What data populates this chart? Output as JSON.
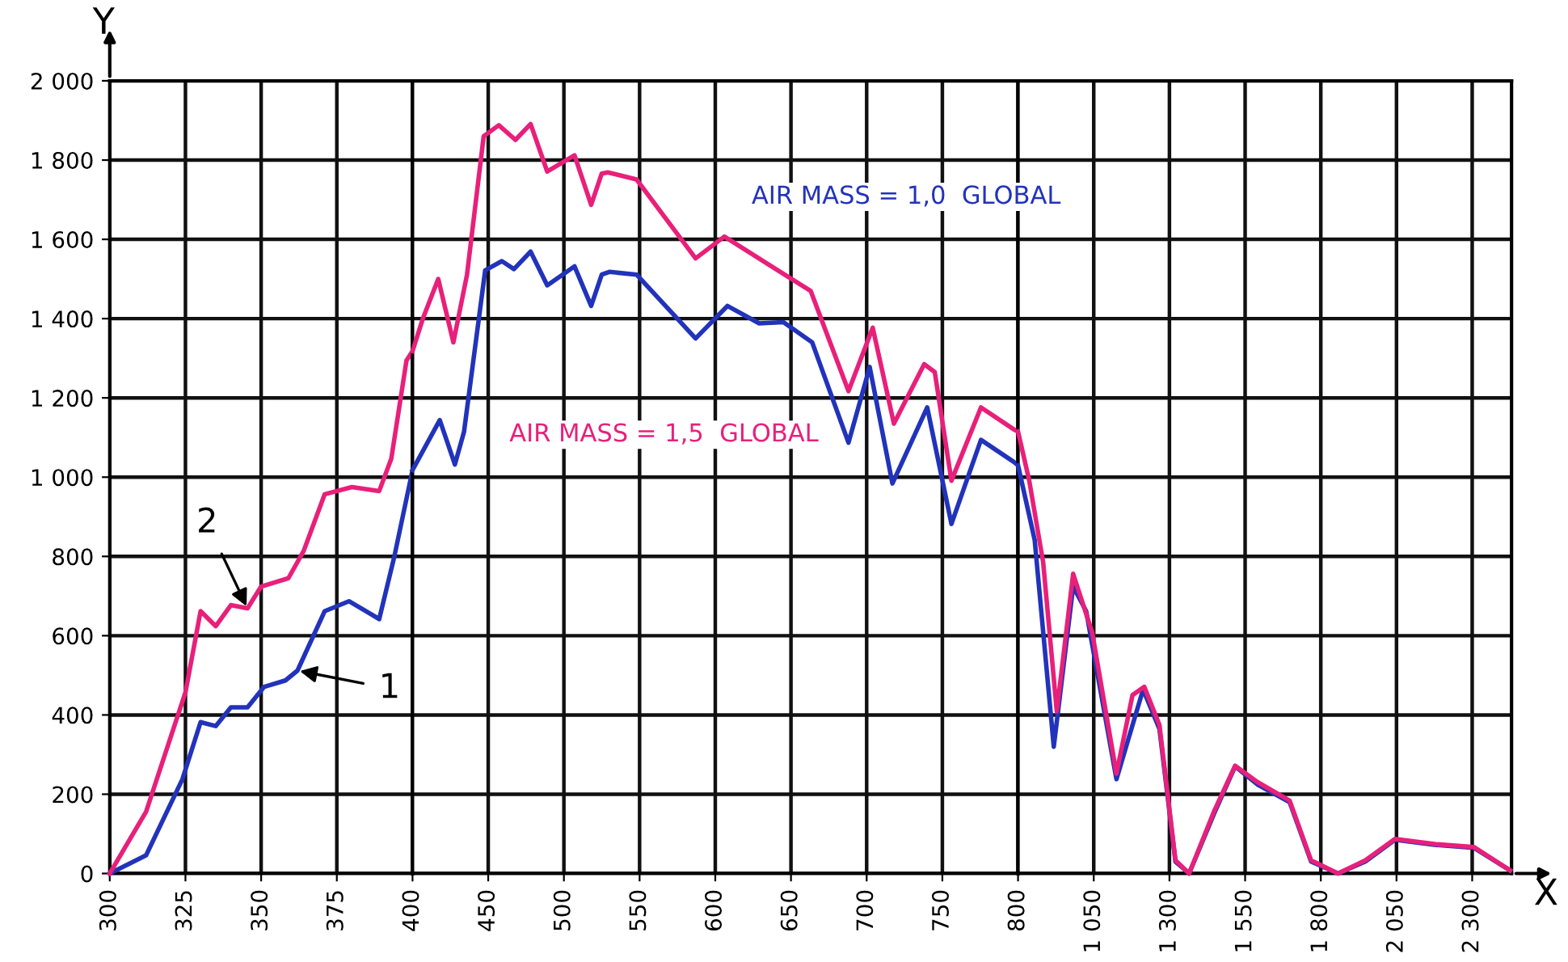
{
  "chart_data": [
    {
      "type": "line",
      "ylabel": "Y",
      "xlim": [
        300,
        400
      ],
      "ylim": [
        0,
        2000
      ],
      "xticks": [
        300,
        325,
        350,
        375,
        400
      ],
      "yticks": [
        0,
        200,
        400,
        600,
        800,
        {
          "value": 1000,
          "label": "1 000"
        },
        {
          "value": 1200,
          "label": "1 200"
        },
        {
          "value": 1400,
          "label": "1 400"
        },
        {
          "value": 1600,
          "label": "1 600"
        },
        {
          "value": 1800,
          "label": "1 800"
        },
        {
          "value": 2000,
          "label": "2 000"
        }
      ],
      "grid": true,
      "legend": false,
      "marker": "none",
      "line_style": "solid",
      "series": [
        {
          "color": "#2233bb",
          "x": [
            300,
            312,
            324,
            330,
            335,
            340,
            345.5,
            351,
            358,
            362,
            371,
            379,
            389,
            394,
            400
          ],
          "values": [
            0,
            46,
            238,
            382,
            372,
            419,
            419,
            471,
            487,
            512,
            662,
            687,
            642,
            800,
            1018
          ]
        },
        {
          "color": "#e8207a",
          "x": [
            300,
            312,
            325,
            330,
            335,
            340,
            345.5,
            350,
            359,
            364,
            371,
            380,
            389,
            393,
            398,
            400
          ],
          "values": [
            0,
            156,
            457,
            662,
            624,
            677,
            669,
            724,
            745,
            813,
            957,
            975,
            965,
            1047,
            1294,
            1318
          ]
        }
      ],
      "annotations": [
        {
          "text": "1",
          "x": 362,
          "y": 512
        },
        {
          "text": "2",
          "x": 345.5,
          "y": 669
        }
      ]
    },
    {
      "type": "line",
      "xlim": [
        400,
        800
      ],
      "ylim": [
        0,
        2000
      ],
      "tick_labels": "x",
      "xticks": [
        450,
        500,
        550,
        600,
        650,
        700,
        750,
        800
      ],
      "yticks": [
        0,
        200,
        400,
        600,
        800,
        1000,
        1200,
        1400,
        1600,
        1800,
        2000
      ],
      "grid": true,
      "legend": false,
      "marker": "none",
      "line_style": "solid",
      "series": [
        {
          "name": "AIR MASS = 1,0  GLOBAL",
          "color": "#2233bb",
          "x": [
            400,
            418,
            428,
            434,
            448,
            459,
            467,
            478,
            489,
            507,
            518,
            525,
            530,
            548,
            587,
            608,
            629,
            645,
            664,
            688,
            702,
            717,
            740,
            756,
            775.5,
            797,
            800
          ],
          "values": [
            1018,
            1144,
            1032,
            1114,
            1522,
            1545,
            1525,
            1569,
            1484,
            1532,
            1432,
            1511,
            1518,
            1511,
            1350,
            1432,
            1388,
            1391,
            1340,
            1087,
            1278,
            984,
            1176,
            882,
            1094,
            1039,
            1030
          ]
        },
        {
          "name": "AIR MASS = 1,5  GLOBAL",
          "color": "#e8207a",
          "x": [
            400,
            407,
            417,
            427,
            436,
            447,
            457,
            468,
            478,
            489,
            507,
            518,
            525,
            529,
            548,
            587,
            606,
            640,
            663,
            688,
            704,
            718,
            738,
            745,
            756,
            775.5,
            797,
            800
          ],
          "values": [
            1318,
            1402,
            1500,
            1340,
            1511,
            1860,
            1888,
            1851,
            1891,
            1771,
            1812,
            1687,
            1766,
            1769,
            1751,
            1552,
            1607,
            1525,
            1470,
            1217,
            1377,
            1135,
            1285,
            1265,
            991,
            1176,
            1121,
            1115
          ]
        }
      ]
    },
    {
      "type": "line",
      "xlabel": "X",
      "xlim": [
        800,
        2430
      ],
      "ylim": [
        0,
        2000
      ],
      "tick_labels": "x",
      "xticks": [
        {
          "value": 1050,
          "label": "1 050"
        },
        {
          "value": 1300,
          "label": "1 300"
        },
        {
          "value": 1550,
          "label": "1 550"
        },
        {
          "value": 1800,
          "label": "1 800"
        },
        {
          "value": 2050,
          "label": "2 050"
        },
        {
          "value": 2300,
          "label": "2 300"
        }
      ],
      "yticks": [
        0,
        200,
        400,
        600,
        800,
        1000,
        1200,
        1400,
        1600,
        1800,
        2000
      ],
      "grid": true,
      "legend": false,
      "marker": "none",
      "line_style": "solid",
      "series": [
        {
          "color": "#2233bb",
          "x": [
            800,
            855,
            918,
            982,
            1025,
            1125,
            1213,
            1267,
            1320,
            1365,
            1447,
            1517,
            1590,
            1697,
            1768,
            1857,
            1947,
            2045,
            2180,
            2305,
            2425
          ],
          "values": [
            1030,
            841,
            320,
            724,
            662,
            238,
            464,
            365,
            30,
            0,
            150,
            270,
            225,
            180,
            30,
            0,
            30,
            85,
            72,
            65,
            8
          ]
        },
        {
          "color": "#e8207a",
          "x": [
            800,
            837,
            883,
            928,
            982,
            1045,
            1125,
            1178,
            1217,
            1267,
            1320,
            1365,
            1447,
            1517,
            1590,
            1697,
            1768,
            1857,
            1947,
            2045,
            2180,
            2305,
            2425
          ],
          "values": [
            1115,
            991,
            785,
            409,
            756,
            608,
            252,
            450,
            471,
            375,
            33,
            0,
            156,
            272,
            231,
            184,
            33,
            0,
            33,
            87,
            74,
            67,
            8
          ]
        }
      ]
    }
  ]
}
